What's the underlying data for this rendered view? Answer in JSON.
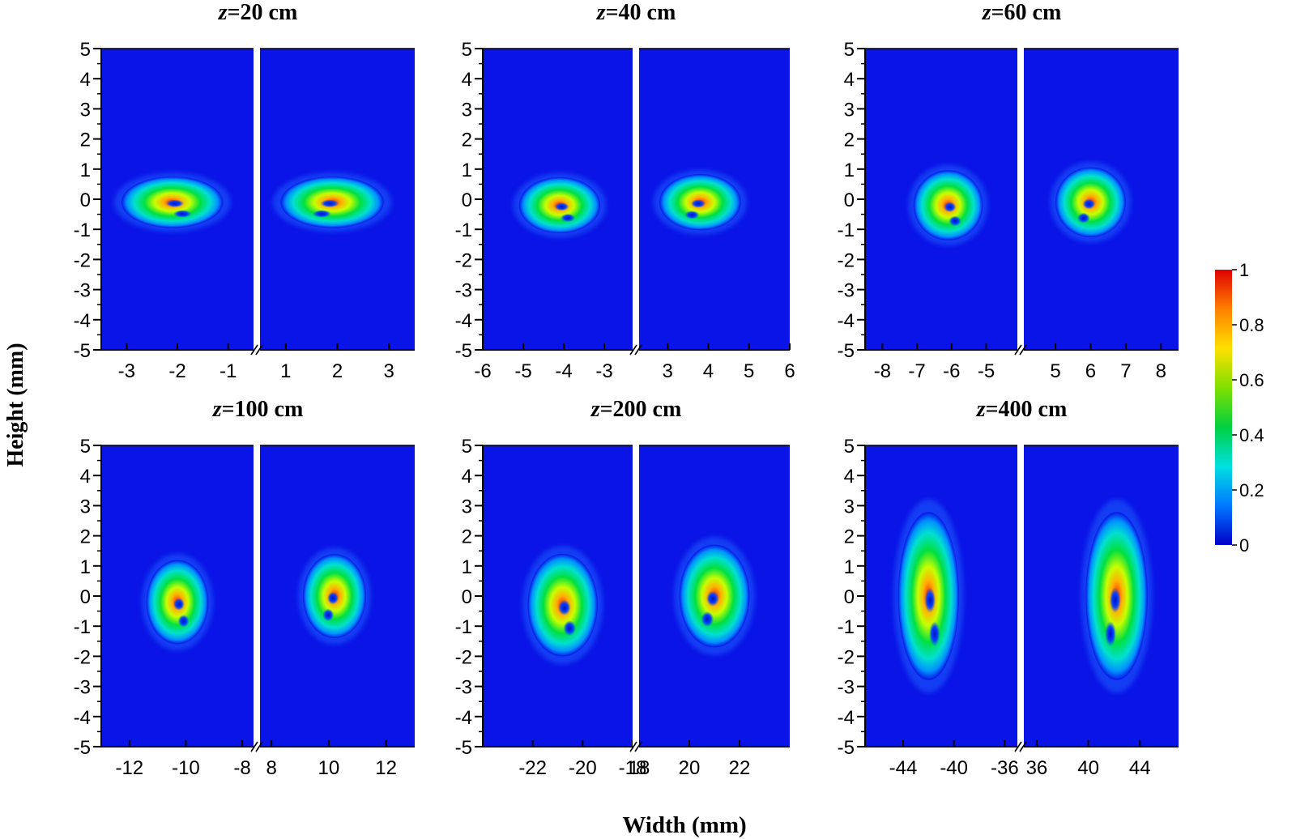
{
  "figure": {
    "ylabel": "Height (mm)",
    "xlabel": "Width (mm)",
    "colorbar": {
      "min": 0,
      "max": 1,
      "ticks": [
        "0",
        "0.2",
        "0.4",
        "0.6",
        "0.8",
        "1"
      ],
      "colors": [
        "#0000c8",
        "#0078ff",
        "#00e0e0",
        "#00d040",
        "#80e000",
        "#ffe000",
        "#ff8000",
        "#e00000"
      ]
    },
    "background_color": "#0a14e6"
  },
  "chart_data": [
    {
      "type": "heatmap",
      "title_italic": "z",
      "title_rest": "=20 cm",
      "ylim": [
        -5,
        5
      ],
      "y_ticks": [
        "5",
        "4",
        "3",
        "2",
        "1",
        "0",
        "-1",
        "-2",
        "-3",
        "-4",
        "-5"
      ],
      "left_xlim": [
        -3.5,
        -0.5
      ],
      "right_xlim": [
        0.5,
        3.5
      ],
      "left_x_ticks": [
        "-3",
        "-2",
        "-1"
      ],
      "right_x_ticks": [
        "1",
        "2",
        "3"
      ],
      "left_beam_center": [
        -2.1,
        -0.1
      ],
      "right_beam_center": [
        1.9,
        -0.1
      ],
      "beam_spread_mm": [
        1.0,
        0.55
      ]
    },
    {
      "type": "heatmap",
      "title_italic": "z",
      "title_rest": "=40 cm",
      "ylim": [
        -5,
        5
      ],
      "y_ticks": [
        "5",
        "4",
        "3",
        "2",
        "1",
        "0",
        "-1",
        "-2",
        "-3",
        "-4",
        "-5"
      ],
      "left_xlim": [
        -6,
        -2.3
      ],
      "right_xlim": [
        2.3,
        6
      ],
      "left_x_ticks": [
        "-6",
        "-5",
        "-4",
        "-3"
      ],
      "right_x_ticks": [
        "3",
        "4",
        "5",
        "6"
      ],
      "left_beam_center": [
        -4.1,
        -0.2
      ],
      "right_beam_center": [
        3.8,
        -0.1
      ],
      "beam_spread_mm": [
        1.0,
        0.6
      ]
    },
    {
      "type": "heatmap",
      "title_italic": "z",
      "title_rest": "=60 cm",
      "ylim": [
        -5,
        5
      ],
      "y_ticks": [
        "5",
        "4",
        "3",
        "2",
        "1",
        "0",
        "-1",
        "-2",
        "-3",
        "-4",
        "-5"
      ],
      "left_xlim": [
        -8.5,
        -4.1
      ],
      "right_xlim": [
        4.1,
        8.5
      ],
      "left_x_ticks": [
        "-8",
        "-7",
        "-6",
        "-5"
      ],
      "right_x_ticks": [
        "5",
        "6",
        "7",
        "8"
      ],
      "left_beam_center": [
        -6.1,
        -0.2
      ],
      "right_beam_center": [
        6.0,
        -0.1
      ],
      "beam_spread_mm": [
        1.0,
        0.75
      ]
    },
    {
      "type": "heatmap",
      "title_italic": "z",
      "title_rest": "=100 cm",
      "ylim": [
        -5,
        5
      ],
      "y_ticks": [
        "5",
        "4",
        "3",
        "2",
        "1",
        "0",
        "-1",
        "-2",
        "-3",
        "-4",
        "-5"
      ],
      "left_xlim": [
        -13,
        -7.6
      ],
      "right_xlim": [
        7.6,
        13
      ],
      "left_x_ticks": [
        "-12",
        "-10",
        "-8"
      ],
      "right_x_ticks": [
        "8",
        "10",
        "12"
      ],
      "left_beam_center": [
        -10.3,
        -0.2
      ],
      "right_beam_center": [
        10.2,
        0
      ],
      "beam_spread_mm": [
        1.1,
        0.9
      ]
    },
    {
      "type": "heatmap",
      "title_italic": "z",
      "title_rest": "=200 cm",
      "ylim": [
        -5,
        5
      ],
      "y_ticks": [
        "5",
        "4",
        "3",
        "2",
        "1",
        "0",
        "-1",
        "-2",
        "-3",
        "-4",
        "-5"
      ],
      "left_xlim": [
        -24,
        -18
      ],
      "right_xlim": [
        18,
        24
      ],
      "left_x_ticks": [
        "-22",
        "-20",
        "-18"
      ],
      "right_x_ticks": [
        "18",
        "20",
        "22"
      ],
      "left_beam_center": [
        -20.8,
        -0.3
      ],
      "right_beam_center": [
        21.0,
        0
      ],
      "beam_spread_mm": [
        1.4,
        1.1
      ]
    },
    {
      "type": "heatmap",
      "title_italic": "z",
      "title_rest": "=400 cm",
      "ylim": [
        -5,
        5
      ],
      "y_ticks": [
        "5",
        "4",
        "3",
        "2",
        "1",
        "0",
        "-1",
        "-2",
        "-3",
        "-4",
        "-5"
      ],
      "left_xlim": [
        -47,
        -35
      ],
      "right_xlim": [
        35,
        47
      ],
      "left_x_ticks": [
        "-44",
        "-40",
        "-36"
      ],
      "right_x_ticks": [
        "36",
        "40",
        "44"
      ],
      "left_beam_center": [
        -42,
        0
      ],
      "right_beam_center": [
        42.2,
        0
      ],
      "beam_spread_mm": [
        2.4,
        1.8
      ]
    }
  ]
}
